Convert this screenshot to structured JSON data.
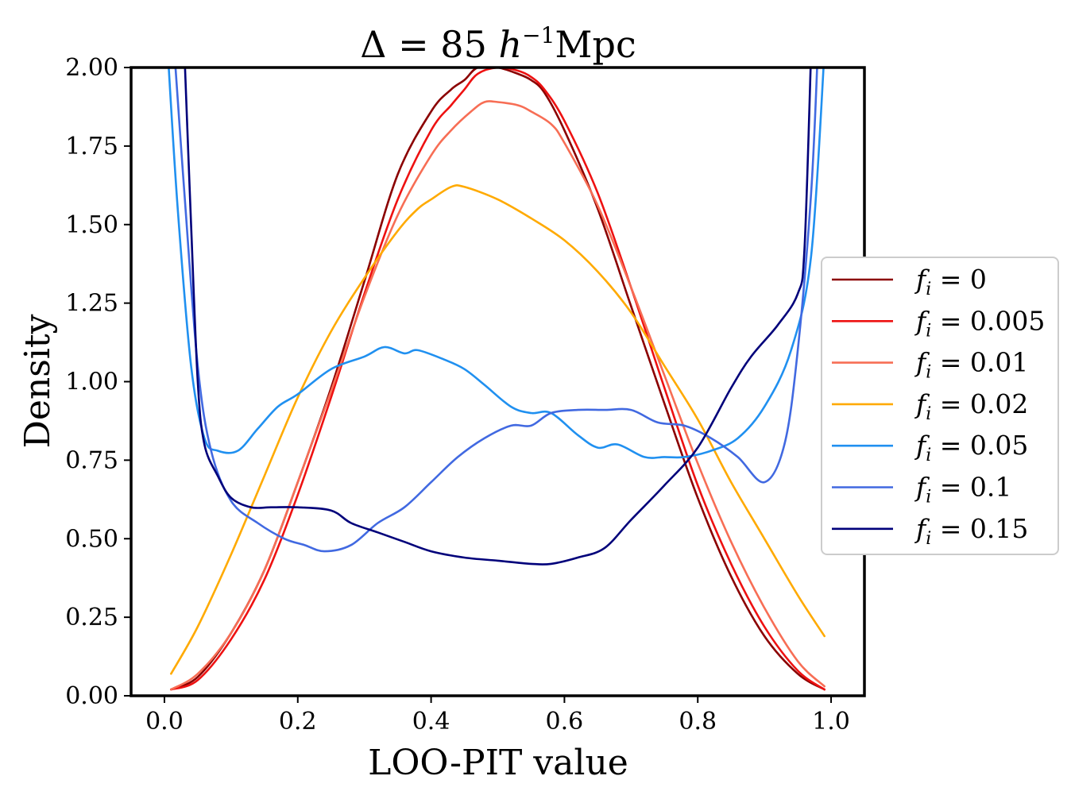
{
  "chart_data": {
    "type": "line",
    "title_prefix": "Δ = 85 ",
    "title_h": "h",
    "title_exp": "−1",
    "title_unit": "Mpc",
    "xlabel": "LOO-PIT value",
    "ylabel": "Density",
    "xlim": [
      -0.05,
      1.05
    ],
    "ylim": [
      0,
      2.0
    ],
    "xticks": [
      0.0,
      0.2,
      0.4,
      0.6,
      0.8,
      1.0
    ],
    "xtick_labels": [
      "0.0",
      "0.2",
      "0.4",
      "0.6",
      "0.8",
      "1.0"
    ],
    "yticks": [
      0.0,
      0.25,
      0.5,
      0.75,
      1.0,
      1.25,
      1.5,
      1.75,
      2.0
    ],
    "ytick_labels": [
      "0.00",
      "0.25",
      "0.50",
      "0.75",
      "1.00",
      "1.25",
      "1.50",
      "1.75",
      "2.00"
    ],
    "legend_position": "center-right",
    "legend_var": "f",
    "legend_sub": "i",
    "series": [
      {
        "name": "f_i = 0",
        "value_label": "0",
        "color": "#8b0000",
        "x": [
          0.01,
          0.05,
          0.1,
          0.15,
          0.2,
          0.25,
          0.3,
          0.35,
          0.4,
          0.43,
          0.45,
          0.47,
          0.5,
          0.53,
          0.55,
          0.57,
          0.6,
          0.65,
          0.7,
          0.75,
          0.8,
          0.85,
          0.9,
          0.95,
          0.99
        ],
        "y": [
          0.02,
          0.06,
          0.2,
          0.4,
          0.68,
          0.98,
          1.32,
          1.66,
          1.86,
          1.93,
          1.96,
          2.0,
          2.0,
          1.98,
          1.96,
          1.92,
          1.8,
          1.55,
          1.24,
          0.93,
          0.63,
          0.38,
          0.19,
          0.07,
          0.02
        ]
      },
      {
        "name": "f_i = 0.005",
        "value_label": "0.005",
        "color": "#ee1111",
        "x": [
          0.01,
          0.05,
          0.1,
          0.15,
          0.2,
          0.25,
          0.3,
          0.35,
          0.4,
          0.43,
          0.45,
          0.47,
          0.5,
          0.53,
          0.55,
          0.57,
          0.6,
          0.65,
          0.7,
          0.75,
          0.8,
          0.85,
          0.9,
          0.95,
          0.99
        ],
        "y": [
          0.02,
          0.05,
          0.18,
          0.37,
          0.64,
          0.95,
          1.28,
          1.58,
          1.8,
          1.88,
          1.93,
          1.98,
          2.0,
          1.99,
          1.97,
          1.93,
          1.83,
          1.6,
          1.3,
          0.98,
          0.67,
          0.42,
          0.22,
          0.08,
          0.02
        ]
      },
      {
        "name": "f_i = 0.01",
        "value_label": "0.01",
        "color": "#f76e55",
        "x": [
          0.01,
          0.05,
          0.1,
          0.15,
          0.2,
          0.25,
          0.3,
          0.35,
          0.4,
          0.43,
          0.46,
          0.48,
          0.5,
          0.53,
          0.55,
          0.58,
          0.6,
          0.65,
          0.7,
          0.75,
          0.8,
          0.85,
          0.9,
          0.95,
          0.99
        ],
        "y": [
          0.02,
          0.07,
          0.2,
          0.4,
          0.68,
          0.97,
          1.27,
          1.53,
          1.72,
          1.8,
          1.86,
          1.89,
          1.89,
          1.88,
          1.86,
          1.82,
          1.76,
          1.56,
          1.3,
          1.02,
          0.74,
          0.49,
          0.28,
          0.11,
          0.03
        ]
      },
      {
        "name": "f_i = 0.02",
        "value_label": "0.02",
        "color": "#ffaa00",
        "x": [
          0.01,
          0.05,
          0.1,
          0.15,
          0.2,
          0.25,
          0.3,
          0.35,
          0.38,
          0.4,
          0.43,
          0.45,
          0.5,
          0.55,
          0.6,
          0.65,
          0.7,
          0.75,
          0.8,
          0.85,
          0.9,
          0.95,
          0.99
        ],
        "y": [
          0.07,
          0.22,
          0.45,
          0.7,
          0.95,
          1.16,
          1.33,
          1.48,
          1.55,
          1.58,
          1.62,
          1.62,
          1.58,
          1.52,
          1.45,
          1.35,
          1.22,
          1.05,
          0.88,
          0.68,
          0.5,
          0.32,
          0.19
        ]
      },
      {
        "name": "f_i = 0.05",
        "value_label": "0.05",
        "color": "#2090f0",
        "x": [
          0.005,
          0.02,
          0.04,
          0.06,
          0.08,
          0.11,
          0.14,
          0.17,
          0.2,
          0.25,
          0.3,
          0.33,
          0.36,
          0.38,
          0.42,
          0.45,
          0.48,
          0.52,
          0.55,
          0.58,
          0.62,
          0.65,
          0.68,
          0.72,
          0.75,
          0.78,
          0.82,
          0.86,
          0.9,
          0.94,
          0.97,
          0.99
        ],
        "y": [
          2.05,
          1.55,
          1.05,
          0.82,
          0.78,
          0.78,
          0.85,
          0.92,
          0.96,
          1.04,
          1.08,
          1.11,
          1.09,
          1.1,
          1.07,
          1.04,
          0.99,
          0.92,
          0.9,
          0.9,
          0.83,
          0.79,
          0.8,
          0.76,
          0.76,
          0.76,
          0.78,
          0.82,
          0.92,
          1.1,
          1.4,
          2.05
        ]
      },
      {
        "name": "f_i = 0.1",
        "value_label": "0.1",
        "color": "#4169e1",
        "x": [
          0.015,
          0.03,
          0.05,
          0.07,
          0.1,
          0.14,
          0.18,
          0.21,
          0.24,
          0.28,
          0.32,
          0.36,
          0.4,
          0.44,
          0.48,
          0.52,
          0.55,
          0.58,
          0.62,
          0.66,
          0.7,
          0.74,
          0.78,
          0.82,
          0.86,
          0.9,
          0.93,
          0.95,
          0.97,
          0.98
        ],
        "y": [
          2.05,
          1.6,
          1.05,
          0.78,
          0.62,
          0.55,
          0.5,
          0.48,
          0.46,
          0.48,
          0.55,
          0.6,
          0.68,
          0.76,
          0.82,
          0.86,
          0.86,
          0.9,
          0.91,
          0.91,
          0.91,
          0.87,
          0.86,
          0.82,
          0.76,
          0.68,
          0.8,
          1.1,
          1.6,
          2.05
        ]
      },
      {
        "name": "f_i = 0.15",
        "value_label": "0.15",
        "color": "#00007a",
        "x": [
          0.03,
          0.04,
          0.05,
          0.06,
          0.08,
          0.1,
          0.13,
          0.16,
          0.2,
          0.25,
          0.28,
          0.32,
          0.36,
          0.4,
          0.45,
          0.5,
          0.55,
          0.58,
          0.62,
          0.66,
          0.7,
          0.75,
          0.8,
          0.85,
          0.88,
          0.92,
          0.95,
          0.96,
          0.97
        ],
        "y": [
          2.05,
          1.5,
          1.0,
          0.8,
          0.7,
          0.63,
          0.6,
          0.6,
          0.6,
          0.59,
          0.55,
          0.52,
          0.49,
          0.46,
          0.44,
          0.43,
          0.42,
          0.42,
          0.44,
          0.47,
          0.56,
          0.67,
          0.79,
          0.98,
          1.08,
          1.18,
          1.28,
          1.42,
          2.05
        ]
      }
    ]
  }
}
